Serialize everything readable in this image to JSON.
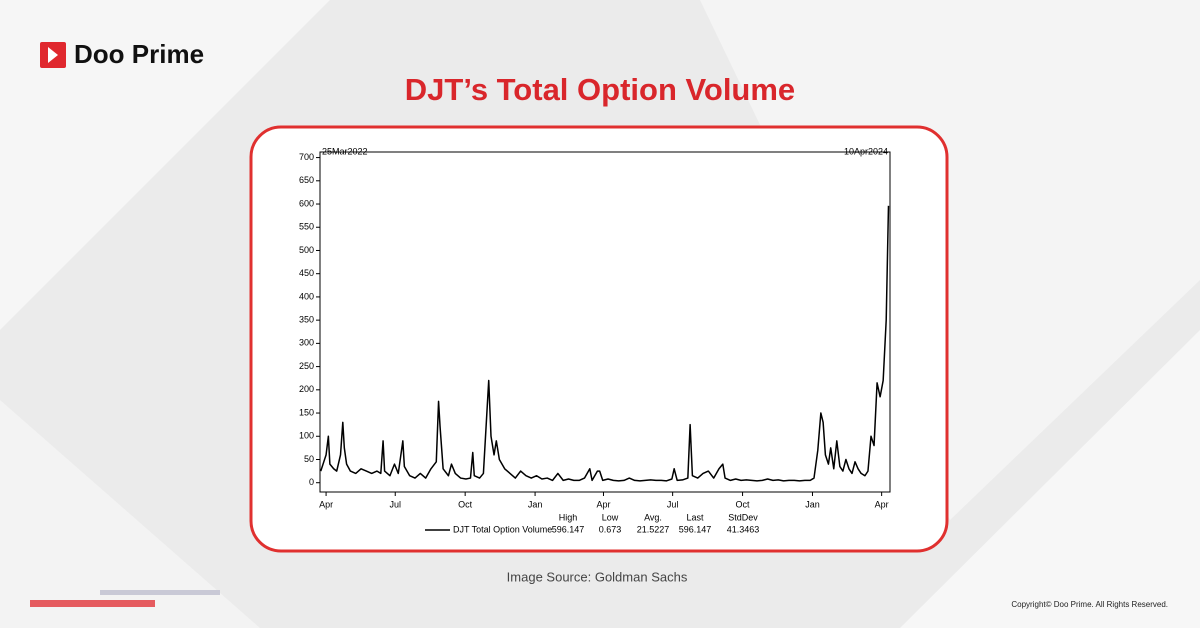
{
  "brand": "Doo Prime",
  "chart_data": {
    "type": "line",
    "title": "DJT’s Total Option Volume",
    "start_label": "25Mar2022",
    "end_label": "10Apr2024",
    "series": [
      {
        "name": "DJT Total Option Volume",
        "color": "#000000",
        "values": [
          25,
          45,
          60,
          100,
          40,
          30,
          25,
          60,
          130,
          75,
          40,
          25,
          20,
          30,
          25,
          20,
          25,
          20,
          90,
          25,
          15,
          40,
          20,
          90,
          35,
          15,
          10,
          20,
          10,
          30,
          45,
          175,
          120,
          30,
          15,
          40,
          20,
          10,
          8,
          10,
          65,
          15,
          10,
          20,
          220,
          100,
          60,
          90,
          50,
          30,
          20,
          10,
          25,
          15,
          10,
          15,
          8,
          10,
          5,
          20,
          5,
          8,
          5,
          5,
          10,
          30,
          5,
          25,
          25,
          5,
          8,
          5,
          4,
          5,
          10,
          5,
          4,
          5,
          6,
          5,
          5,
          4,
          8,
          30,
          5,
          6,
          10,
          125,
          15,
          10,
          20,
          25,
          10,
          30,
          40,
          10,
          5,
          8,
          5,
          6,
          5,
          4,
          5,
          8,
          5,
          6,
          4,
          5,
          5,
          4,
          5,
          5,
          10,
          70,
          150,
          130,
          60,
          40,
          75,
          30,
          90,
          35,
          25,
          50,
          30,
          20,
          45,
          30,
          20,
          15,
          25,
          100,
          80,
          215,
          185,
          220,
          350,
          596.147
        ]
      }
    ],
    "x": [
      "2022-03-25",
      "2022-03-29",
      "2022-04-01",
      "2022-04-04",
      "2022-04-06",
      "2022-04-11",
      "2022-04-15",
      "2022-04-20",
      "2022-04-23",
      "2022-04-25",
      "2022-04-28",
      "2022-05-03",
      "2022-05-10",
      "2022-05-17",
      "2022-05-24",
      "2022-05-31",
      "2022-06-07",
      "2022-06-12",
      "2022-06-15",
      "2022-06-17",
      "2022-06-24",
      "2022-06-30",
      "2022-07-05",
      "2022-07-11",
      "2022-07-13",
      "2022-07-20",
      "2022-07-27",
      "2022-08-03",
      "2022-08-10",
      "2022-08-17",
      "2022-08-24",
      "2022-08-27",
      "2022-08-29",
      "2022-09-02",
      "2022-09-09",
      "2022-09-13",
      "2022-09-18",
      "2022-09-25",
      "2022-10-02",
      "2022-10-08",
      "2022-10-11",
      "2022-10-13",
      "2022-10-20",
      "2022-10-25",
      "2022-11-01",
      "2022-11-04",
      "2022-11-08",
      "2022-11-11",
      "2022-11-15",
      "2022-11-22",
      "2022-11-29",
      "2022-12-06",
      "2022-12-13",
      "2022-12-20",
      "2022-12-27",
      "2023-01-03",
      "2023-01-10",
      "2023-01-17",
      "2023-01-24",
      "2023-01-31",
      "2023-02-07",
      "2023-02-14",
      "2023-02-21",
      "2023-02-28",
      "2023-03-07",
      "2023-03-14",
      "2023-03-17",
      "2023-03-24",
      "2023-03-27",
      "2023-03-31",
      "2023-04-07",
      "2023-04-14",
      "2023-04-21",
      "2023-04-28",
      "2023-05-05",
      "2023-05-12",
      "2023-05-19",
      "2023-05-26",
      "2023-06-02",
      "2023-06-09",
      "2023-06-16",
      "2023-06-23",
      "2023-06-30",
      "2023-07-03",
      "2023-07-07",
      "2023-07-14",
      "2023-07-21",
      "2023-07-24",
      "2023-07-27",
      "2023-08-03",
      "2023-08-10",
      "2023-08-17",
      "2023-08-24",
      "2023-08-31",
      "2023-09-05",
      "2023-09-08",
      "2023-09-15",
      "2023-09-22",
      "2023-09-29",
      "2023-10-06",
      "2023-10-13",
      "2023-10-20",
      "2023-10-27",
      "2023-11-03",
      "2023-11-10",
      "2023-11-17",
      "2023-11-24",
      "2023-12-01",
      "2023-12-08",
      "2023-12-15",
      "2023-12-22",
      "2023-12-29",
      "2024-01-03",
      "2024-01-08",
      "2024-01-12",
      "2024-01-15",
      "2024-01-18",
      "2024-01-22",
      "2024-01-25",
      "2024-01-29",
      "2024-02-02",
      "2024-02-06",
      "2024-02-10",
      "2024-02-14",
      "2024-02-18",
      "2024-02-22",
      "2024-02-26",
      "2024-03-01",
      "2024-03-05",
      "2024-03-10",
      "2024-03-14",
      "2024-03-18",
      "2024-03-22",
      "2024-03-26",
      "2024-03-30",
      "2024-04-03",
      "2024-04-07",
      "2024-04-10"
    ],
    "xlim": [
      "2022-03-24",
      "2024-04-12"
    ],
    "xticks": [
      {
        "value": "2022-04-01",
        "label": "Apr"
      },
      {
        "value": "2022-07-01",
        "label": "Jul"
      },
      {
        "value": "2022-10-01",
        "label": "Oct"
      },
      {
        "value": "2023-01-01",
        "label": "Jan"
      },
      {
        "value": "2023-04-01",
        "label": "Apr"
      },
      {
        "value": "2023-07-01",
        "label": "Jul"
      },
      {
        "value": "2023-10-01",
        "label": "Oct"
      },
      {
        "value": "2024-01-01",
        "label": "Jan"
      },
      {
        "value": "2024-04-01",
        "label": "Apr"
      }
    ],
    "ylim": [
      -20,
      712
    ],
    "yticks": [
      0,
      50,
      100,
      150,
      200,
      250,
      300,
      350,
      400,
      450,
      500,
      550,
      600,
      650,
      700
    ],
    "stats": [
      {
        "label": "High",
        "value": 596.147
      },
      {
        "label": "Low",
        "value": 0.673
      },
      {
        "label": "Avg.",
        "value": 21.5227
      },
      {
        "label": "Last",
        "value": 596.147
      },
      {
        "label": "StdDev",
        "value": 41.3463
      }
    ]
  },
  "source": "Image Source: Goldman Sachs",
  "copyright": "Copyright© Doo Prime. All Rights Reserved."
}
